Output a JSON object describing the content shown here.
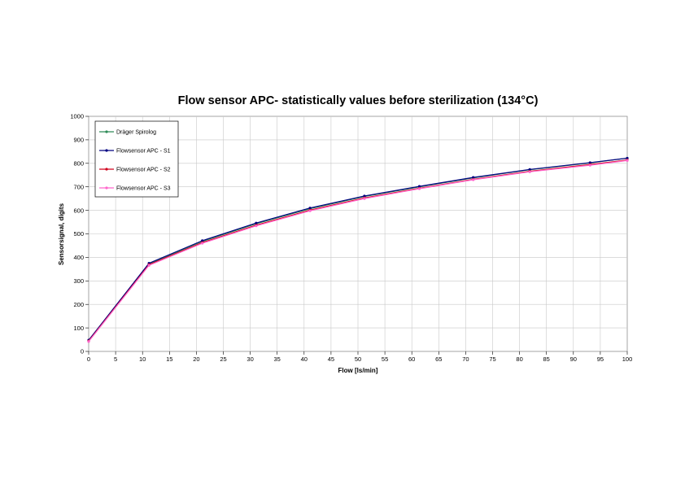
{
  "chart_data": {
    "type": "line",
    "title": "Flow sensor APC- statistically values before sterilization (134°C)",
    "xlabel": "Flow [ls/min]",
    "ylabel": "Sensorsignal, digits",
    "xlim": [
      0,
      100
    ],
    "ylim": [
      0,
      1000
    ],
    "xticks": [
      0,
      5,
      10,
      15,
      20,
      25,
      30,
      35,
      40,
      45,
      50,
      55,
      60,
      65,
      70,
      75,
      80,
      85,
      90,
      95,
      100
    ],
    "yticks": [
      0,
      100,
      200,
      300,
      400,
      500,
      600,
      700,
      800,
      900,
      1000
    ],
    "grid": true,
    "legend_position": "top-left",
    "series": [
      {
        "name": "Dräger Spirolog",
        "color": "#2e8b57",
        "x": [
          0,
          11.2,
          21.1,
          31.1,
          41.1,
          51.2,
          61.4,
          71.4,
          81.9,
          93.1,
          100
        ],
        "y": [
          45,
          372,
          468,
          543,
          607,
          659,
          700,
          738,
          773,
          802,
          822
        ]
      },
      {
        "name": "Flowsensor APC - S1",
        "color": "#000080",
        "x": [
          0,
          11.2,
          21.1,
          31.1,
          41.1,
          51.2,
          61.4,
          71.4,
          81.9,
          93.1,
          100
        ],
        "y": [
          48,
          375,
          471,
          546,
          610,
          661,
          702,
          740,
          774,
          803,
          822
        ]
      },
      {
        "name": "Flowsensor APC - S2",
        "color": "#d0001c",
        "x": [
          0,
          11.2,
          21.1,
          31.1,
          41.1,
          51.2,
          61.4,
          71.4,
          81.9,
          93.1,
          100
        ],
        "y": [
          44,
          369,
          463,
          537,
          601,
          653,
          694,
          732,
          766,
          795,
          814
        ]
      },
      {
        "name": "Flowsensor APC - S3",
        "color": "#ff66cc",
        "x": [
          0,
          11.2,
          21.1,
          31.1,
          41.1,
          51.2,
          61.4,
          71.4,
          81.9,
          93.1,
          100
        ],
        "y": [
          42,
          366,
          460,
          534,
          598,
          650,
          692,
          730,
          764,
          792,
          812
        ]
      }
    ]
  }
}
